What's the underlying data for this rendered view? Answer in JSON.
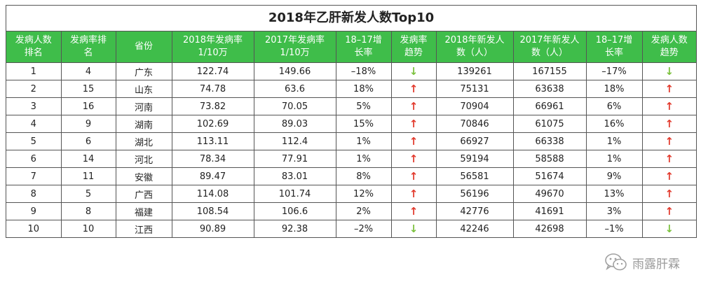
{
  "title": "2018年乙肝新发人数Top10",
  "headers": [
    [
      "发病人数",
      "排名"
    ],
    [
      "发病率排",
      "名"
    ],
    [
      "省份"
    ],
    [
      "2018年发病率",
      "1/10万"
    ],
    [
      "2017年发病率",
      "1/10万"
    ],
    [
      "18–17增",
      "长率"
    ],
    [
      "发病率",
      "趋势"
    ],
    [
      "2018年新发人",
      "数（人）"
    ],
    [
      "2017年新发人",
      "数（人）"
    ],
    [
      "18–17增",
      "长率"
    ],
    [
      "发病人数",
      "趋势"
    ]
  ],
  "rows": [
    {
      "rank": "1",
      "rate_rank": "4",
      "province": "广东",
      "rate_2018": "122.74",
      "rate_2017": "149.66",
      "rate_growth": "–18%",
      "rate_trend": "↓",
      "rate_dir": "down",
      "new_2018": "139261",
      "new_2017": "167155",
      "new_growth": "–17%",
      "new_trend": "↓",
      "new_dir": "down"
    },
    {
      "rank": "2",
      "rate_rank": "15",
      "province": "山东",
      "rate_2018": "74.78",
      "rate_2017": "63.6",
      "rate_growth": "18%",
      "rate_trend": "↑",
      "rate_dir": "up",
      "new_2018": "75131",
      "new_2017": "63638",
      "new_growth": "18%",
      "new_trend": "↑",
      "new_dir": "up"
    },
    {
      "rank": "3",
      "rate_rank": "16",
      "province": "河南",
      "rate_2018": "73.82",
      "rate_2017": "70.05",
      "rate_growth": "5%",
      "rate_trend": "↑",
      "rate_dir": "up",
      "new_2018": "70904",
      "new_2017": "66961",
      "new_growth": "6%",
      "new_trend": "↑",
      "new_dir": "up"
    },
    {
      "rank": "4",
      "rate_rank": "9",
      "province": "湖南",
      "rate_2018": "102.69",
      "rate_2017": "89.03",
      "rate_growth": "15%",
      "rate_trend": "↑",
      "rate_dir": "up",
      "new_2018": "70846",
      "new_2017": "61075",
      "new_growth": "16%",
      "new_trend": "↑",
      "new_dir": "up"
    },
    {
      "rank": "5",
      "rate_rank": "6",
      "province": "湖北",
      "rate_2018": "113.11",
      "rate_2017": "112.4",
      "rate_growth": "1%",
      "rate_trend": "↑",
      "rate_dir": "up",
      "new_2018": "66927",
      "new_2017": "66338",
      "new_growth": "1%",
      "new_trend": "↑",
      "new_dir": "up"
    },
    {
      "rank": "6",
      "rate_rank": "14",
      "province": "河北",
      "rate_2018": "78.34",
      "rate_2017": "77.91",
      "rate_growth": "1%",
      "rate_trend": "↑",
      "rate_dir": "up",
      "new_2018": "59194",
      "new_2017": "58588",
      "new_growth": "1%",
      "new_trend": "↑",
      "new_dir": "up"
    },
    {
      "rank": "7",
      "rate_rank": "11",
      "province": "安徽",
      "rate_2018": "89.47",
      "rate_2017": "83.01",
      "rate_growth": "8%",
      "rate_trend": "↑",
      "rate_dir": "up",
      "new_2018": "56581",
      "new_2017": "51674",
      "new_growth": "9%",
      "new_trend": "↑",
      "new_dir": "up"
    },
    {
      "rank": "8",
      "rate_rank": "5",
      "province": "广西",
      "rate_2018": "114.08",
      "rate_2017": "101.74",
      "rate_growth": "12%",
      "rate_trend": "↑",
      "rate_dir": "up",
      "new_2018": "56196",
      "new_2017": "49670",
      "new_growth": "13%",
      "new_trend": "↑",
      "new_dir": "up"
    },
    {
      "rank": "9",
      "rate_rank": "8",
      "province": "福建",
      "rate_2018": "108.54",
      "rate_2017": "106.6",
      "rate_growth": "2%",
      "rate_trend": "↑",
      "rate_dir": "up",
      "new_2018": "42776",
      "new_2017": "41691",
      "new_growth": "3%",
      "new_trend": "↑",
      "new_dir": "up"
    },
    {
      "rank": "10",
      "rate_rank": "10",
      "province": "江西",
      "rate_2018": "90.89",
      "rate_2017": "92.38",
      "rate_growth": "–2%",
      "rate_trend": "↓",
      "rate_dir": "down",
      "new_2018": "42246",
      "new_2017": "42698",
      "new_growth": "–1%",
      "new_trend": "↓",
      "new_dir": "down"
    }
  ],
  "colors": {
    "header_bg": "#3fbd4a",
    "up_arrow": "#e23b2e",
    "down_arrow": "#7cc13e"
  },
  "watermark": {
    "text": "雨露肝霖",
    "icon": "wechat-logo-icon"
  }
}
